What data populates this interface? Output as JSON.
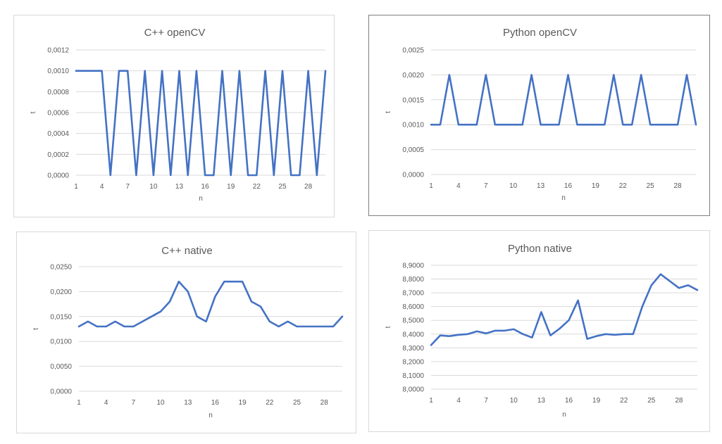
{
  "chart_data": [
    {
      "type": "line",
      "title": "C++ openCV",
      "xlabel": "n",
      "ylabel": "t",
      "x": [
        1,
        2,
        3,
        4,
        5,
        6,
        7,
        8,
        9,
        10,
        11,
        12,
        13,
        14,
        15,
        16,
        17,
        18,
        19,
        20,
        21,
        22,
        23,
        24,
        25,
        26,
        27,
        28,
        29,
        30
      ],
      "x_tick_labels": [
        "1",
        "4",
        "7",
        "10",
        "13",
        "16",
        "19",
        "22",
        "25",
        "28"
      ],
      "y_tick_labels": [
        "0,0000",
        "0,0002",
        "0,0004",
        "0,0006",
        "0,0008",
        "0,0010",
        "0,0012"
      ],
      "ylim": [
        0,
        0.0012
      ],
      "grid": true,
      "series": [
        {
          "color": "#4472c4",
          "values": [
            0.001,
            0.001,
            0.001,
            0.001,
            0,
            0.001,
            0.001,
            0,
            0.001,
            0,
            0.001,
            0,
            0.001,
            0,
            0.001,
            0,
            0,
            0.001,
            0,
            0.001,
            0,
            0,
            0.001,
            0,
            0.001,
            0,
            0,
            0.001,
            0,
            0.001
          ]
        }
      ]
    },
    {
      "type": "line",
      "title": "Python openCV",
      "xlabel": "n",
      "ylabel": "t",
      "x": [
        1,
        2,
        3,
        4,
        5,
        6,
        7,
        8,
        9,
        10,
        11,
        12,
        13,
        14,
        15,
        16,
        17,
        18,
        19,
        20,
        21,
        22,
        23,
        24,
        25,
        26,
        27,
        28,
        29,
        30
      ],
      "x_tick_labels": [
        "1",
        "4",
        "7",
        "10",
        "13",
        "16",
        "19",
        "22",
        "25",
        "28"
      ],
      "y_tick_labels": [
        "0,0000",
        "0,0005",
        "0,0010",
        "0,0015",
        "0,0020",
        "0,0025"
      ],
      "ylim": [
        0,
        0.0025
      ],
      "grid": true,
      "series": [
        {
          "color": "#4472c4",
          "values": [
            0.001,
            0.001,
            0.002,
            0.001,
            0.001,
            0.001,
            0.002,
            0.001,
            0.001,
            0.001,
            0.001,
            0.002,
            0.001,
            0.001,
            0.001,
            0.002,
            0.001,
            0.001,
            0.001,
            0.001,
            0.002,
            0.001,
            0.001,
            0.002,
            0.001,
            0.001,
            0.001,
            0.001,
            0.002,
            0.001
          ]
        }
      ]
    },
    {
      "type": "line",
      "title": "C++ native",
      "xlabel": "n",
      "ylabel": "t",
      "x": [
        1,
        2,
        3,
        4,
        5,
        6,
        7,
        8,
        9,
        10,
        11,
        12,
        13,
        14,
        15,
        16,
        17,
        18,
        19,
        20,
        21,
        22,
        23,
        24,
        25,
        26,
        27,
        28,
        29,
        30
      ],
      "x_tick_labels": [
        "1",
        "4",
        "7",
        "10",
        "13",
        "16",
        "19",
        "22",
        "25",
        "28"
      ],
      "y_tick_labels": [
        "0,0000",
        "0,0050",
        "0,0100",
        "0,0150",
        "0,0200",
        "0,0250"
      ],
      "ylim": [
        0,
        0.025
      ],
      "grid": true,
      "series": [
        {
          "color": "#4472c4",
          "values": [
            0.013,
            0.014,
            0.013,
            0.013,
            0.014,
            0.013,
            0.013,
            0.014,
            0.015,
            0.016,
            0.018,
            0.022,
            0.02,
            0.015,
            0.014,
            0.019,
            0.022,
            0.022,
            0.022,
            0.018,
            0.017,
            0.014,
            0.013,
            0.014,
            0.013,
            0.013,
            0.013,
            0.013,
            0.013,
            0.015
          ]
        }
      ]
    },
    {
      "type": "line",
      "title": "Python native",
      "xlabel": "n",
      "ylabel": "t",
      "x": [
        1,
        2,
        3,
        4,
        5,
        6,
        7,
        8,
        9,
        10,
        11,
        12,
        13,
        14,
        15,
        16,
        17,
        18,
        19,
        20,
        21,
        22,
        23,
        24,
        25,
        26,
        27,
        28,
        29,
        30
      ],
      "x_tick_labels": [
        "1",
        "4",
        "7",
        "10",
        "13",
        "16",
        "19",
        "22",
        "25",
        "28"
      ],
      "y_tick_labels": [
        "8,0000",
        "8,1000",
        "8,2000",
        "8,3000",
        "8,4000",
        "8,5000",
        "8,6000",
        "8,7000",
        "8,8000",
        "8,9000"
      ],
      "ylim": [
        8.0,
        8.9
      ],
      "grid": true,
      "series": [
        {
          "color": "#4472c4",
          "values": [
            8.32,
            8.39,
            8.385,
            8.395,
            8.4,
            8.42,
            8.405,
            8.425,
            8.425,
            8.435,
            8.4,
            8.375,
            8.56,
            8.39,
            8.44,
            8.5,
            8.645,
            8.365,
            8.385,
            8.4,
            8.395,
            8.4,
            8.4,
            8.6,
            8.755,
            8.835,
            8.785,
            8.735,
            8.755,
            8.72
          ]
        }
      ]
    }
  ]
}
